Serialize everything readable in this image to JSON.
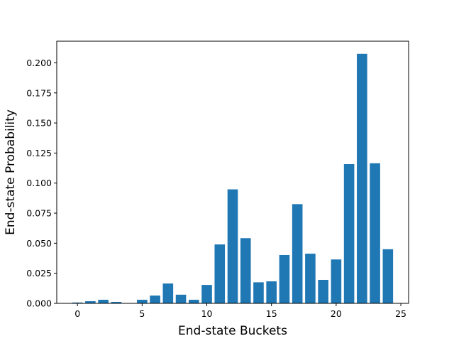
{
  "chart_data": {
    "type": "bar",
    "title": "",
    "xlabel": "End-state Buckets",
    "ylabel": "End-state Probability",
    "xlim": [
      -1.6,
      25.6
    ],
    "ylim": [
      0,
      0.218
    ],
    "xticks": [
      0,
      5,
      10,
      15,
      20,
      25
    ],
    "xtick_labels": [
      "0",
      "5",
      "10",
      "15",
      "20",
      "25"
    ],
    "yticks": [
      0,
      0.025,
      0.05,
      0.075,
      0.1,
      0.125,
      0.15,
      0.175,
      0.2
    ],
    "ytick_labels": [
      "0.000",
      "0.025",
      "0.050",
      "0.075",
      "0.100",
      "0.125",
      "0.150",
      "0.175",
      "0.200"
    ],
    "bar_width": 0.8,
    "color": "#1f77b4",
    "grid": false,
    "legend": "none",
    "x": [
      0,
      1,
      2,
      3,
      4,
      5,
      6,
      7,
      8,
      9,
      10,
      11,
      12,
      13,
      14,
      15,
      16,
      17,
      18,
      19,
      20,
      21,
      22,
      23,
      24
    ],
    "values": [
      0.0007,
      0.0018,
      0.003,
      0.0012,
      0.0,
      0.003,
      0.0065,
      0.0165,
      0.0072,
      0.003,
      0.0153,
      0.049,
      0.0948,
      0.0542,
      0.0175,
      0.0183,
      0.0402,
      0.0825,
      0.0413,
      0.0195,
      0.0365,
      0.1158,
      0.2075,
      0.1165,
      0.045
    ]
  }
}
